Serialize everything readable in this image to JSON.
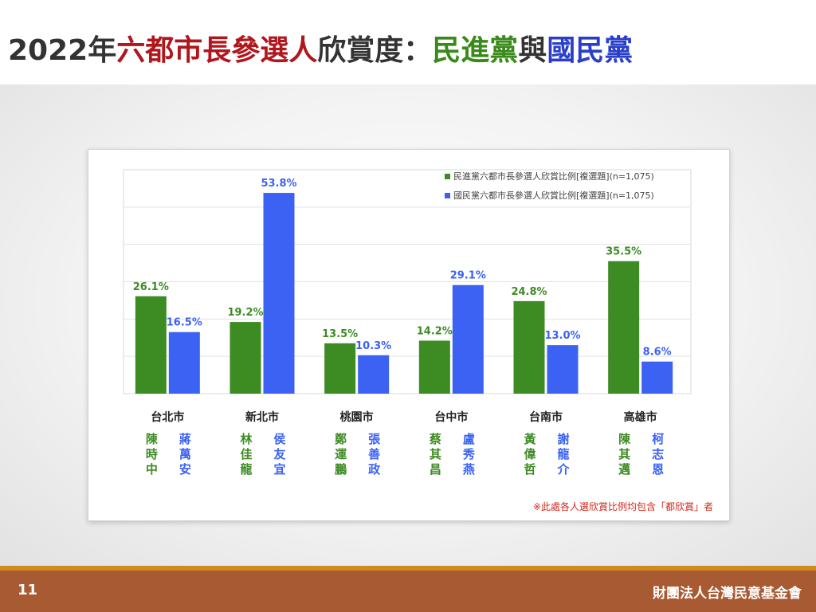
{
  "title": {
    "part1": "2022年",
    "part2": "六都市長參選人",
    "part3": "欣賞度：",
    "part4": "民進黨",
    "part5": "與",
    "part6": "國民黨"
  },
  "footer": {
    "page_number": "11",
    "organization": "財團法人台灣民意基金會"
  },
  "colors": {
    "dpp": "#3d8b23",
    "kmt": "#3b62f2",
    "note": "#d0281c"
  },
  "chart_data": {
    "type": "bar",
    "categories": [
      "台北市",
      "新北市",
      "桃園市",
      "台中市",
      "台南市",
      "高雄市"
    ],
    "series": [
      {
        "name": "民進黨六都市長參選人欣賞比例[複選題](n=1,075)",
        "values": [
          26.1,
          19.2,
          13.5,
          14.2,
          24.8,
          35.5
        ],
        "labels": [
          "26.1%",
          "19.2%",
          "13.5%",
          "14.2%",
          "24.8%",
          "35.5%"
        ]
      },
      {
        "name": "國民黨六都市長參選人欣賞比例[複選題](n=1,075)",
        "values": [
          16.5,
          53.8,
          10.3,
          29.1,
          13.0,
          8.6
        ],
        "labels": [
          "16.5%",
          "53.8%",
          "10.3%",
          "29.1%",
          "13.0%",
          "8.6%"
        ]
      }
    ],
    "candidates": [
      {
        "dpp": [
          "陳",
          "時",
          "中"
        ],
        "kmt": [
          "蔣",
          "萬",
          "安"
        ]
      },
      {
        "dpp": [
          "林",
          "佳",
          "龍"
        ],
        "kmt": [
          "侯",
          "友",
          "宜"
        ]
      },
      {
        "dpp": [
          "鄭",
          "運",
          "鵬"
        ],
        "kmt": [
          "張",
          "善",
          "政"
        ]
      },
      {
        "dpp": [
          "蔡",
          "其",
          "昌"
        ],
        "kmt": [
          "盧",
          "秀",
          "燕"
        ]
      },
      {
        "dpp": [
          "黃",
          "偉",
          "哲"
        ],
        "kmt": [
          "謝",
          "龍",
          "介"
        ]
      },
      {
        "dpp": [
          "陳",
          "其",
          "邁"
        ],
        "kmt": [
          "柯",
          "志",
          "恩"
        ]
      }
    ],
    "ylim": [
      0,
      60
    ],
    "grid": true,
    "legend": "top-right",
    "note": "※此處各人選欣賞比例均包含「都欣賞」者"
  }
}
